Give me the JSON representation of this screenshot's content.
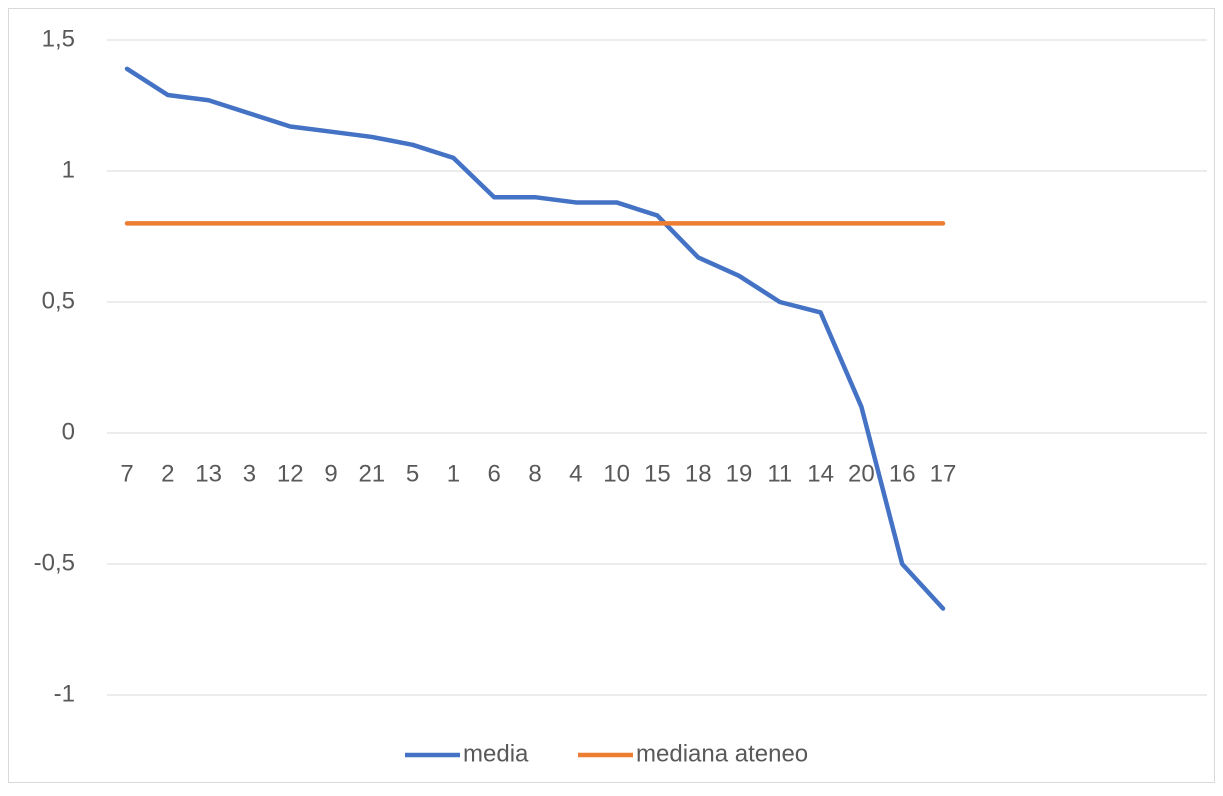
{
  "chart_data": {
    "type": "line",
    "categories": [
      "7",
      "2",
      "13",
      "3",
      "12",
      "9",
      "21",
      "5",
      "1",
      "6",
      "8",
      "4",
      "10",
      "15",
      "18",
      "19",
      "11",
      "14",
      "20",
      "16",
      "17"
    ],
    "series": [
      {
        "name": "media",
        "color": "#4472c4",
        "values": [
          1.39,
          1.29,
          1.27,
          1.22,
          1.17,
          1.15,
          1.13,
          1.1,
          1.05,
          0.9,
          0.9,
          0.88,
          0.88,
          0.83,
          0.67,
          0.6,
          0.5,
          0.46,
          0.1,
          -0.5,
          -0.67
        ]
      },
      {
        "name": "mediana ateneo",
        "color": "#ed7d31",
        "values": [
          0.8,
          0.8,
          0.8,
          0.8,
          0.8,
          0.8,
          0.8,
          0.8,
          0.8,
          0.8,
          0.8,
          0.8,
          0.8,
          0.8,
          0.8,
          0.8,
          0.8,
          0.8,
          0.8,
          0.8,
          0.8
        ]
      }
    ],
    "ylim": [
      -1,
      1.5
    ],
    "yticks": [
      -1,
      {
        "value": -0.5,
        "label": "-0,5"
      },
      0,
      {
        "value": 0.5,
        "label": "0,5"
      },
      1,
      {
        "value": 1.5,
        "label": "1,5"
      }
    ],
    "grid": true,
    "legend": "bottom"
  }
}
